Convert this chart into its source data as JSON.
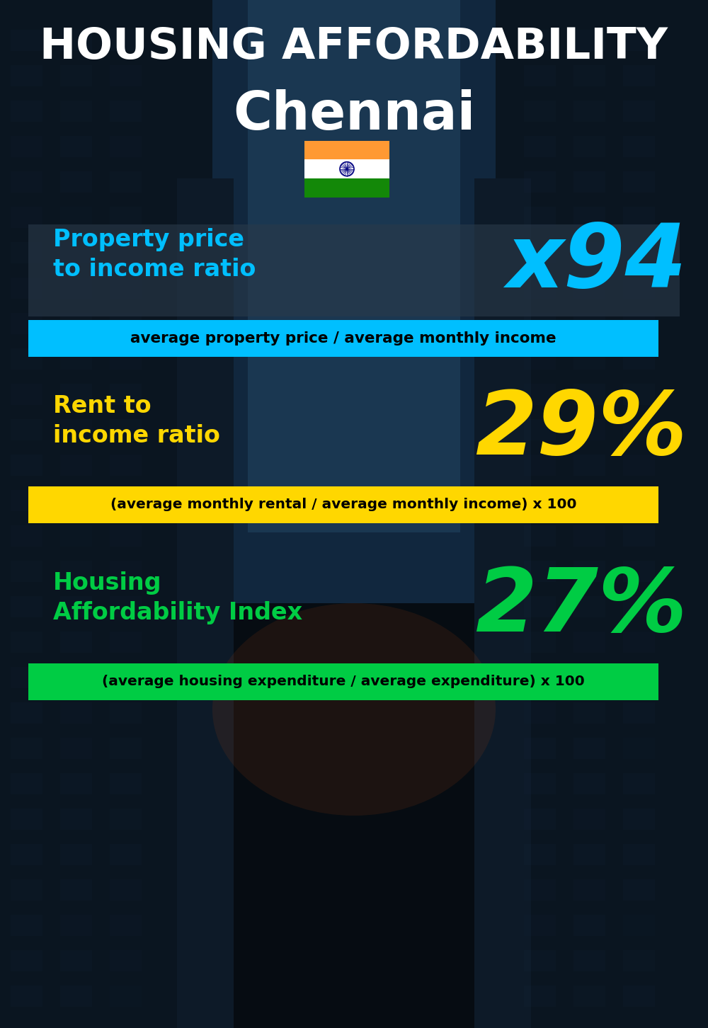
{
  "title_line1": "HOUSING AFFORDABILITY",
  "title_line2": "Chennai",
  "section1_label": "Property price\nto income ratio",
  "section1_value": "x94",
  "section1_sublabel": "average property price / average monthly income",
  "section1_label_color": "#00BFFF",
  "section1_value_color": "#00BFFF",
  "section1_bg_color": "#00BFFF",
  "section2_label": "Rent to\nincome ratio",
  "section2_value": "29%",
  "section2_sublabel": "(average monthly rental / average monthly income) x 100",
  "section2_label_color": "#FFD700",
  "section2_value_color": "#FFD700",
  "section2_bg_color": "#FFD700",
  "section3_label": "Housing\nAffordability Index",
  "section3_value": "27%",
  "section3_sublabel": "(average housing expenditure / average expenditure) x 100",
  "section3_label_color": "#00CC44",
  "section3_value_color": "#00CC44",
  "section3_bg_color": "#00CC44",
  "bg_color": "#070d14",
  "title_color": "#FFFFFF",
  "subtitle_color": "#FFFFFF",
  "sublabel_text_color": "#000000",
  "panel1_color": "#2a3a4a",
  "sky_color": "#2a4060"
}
